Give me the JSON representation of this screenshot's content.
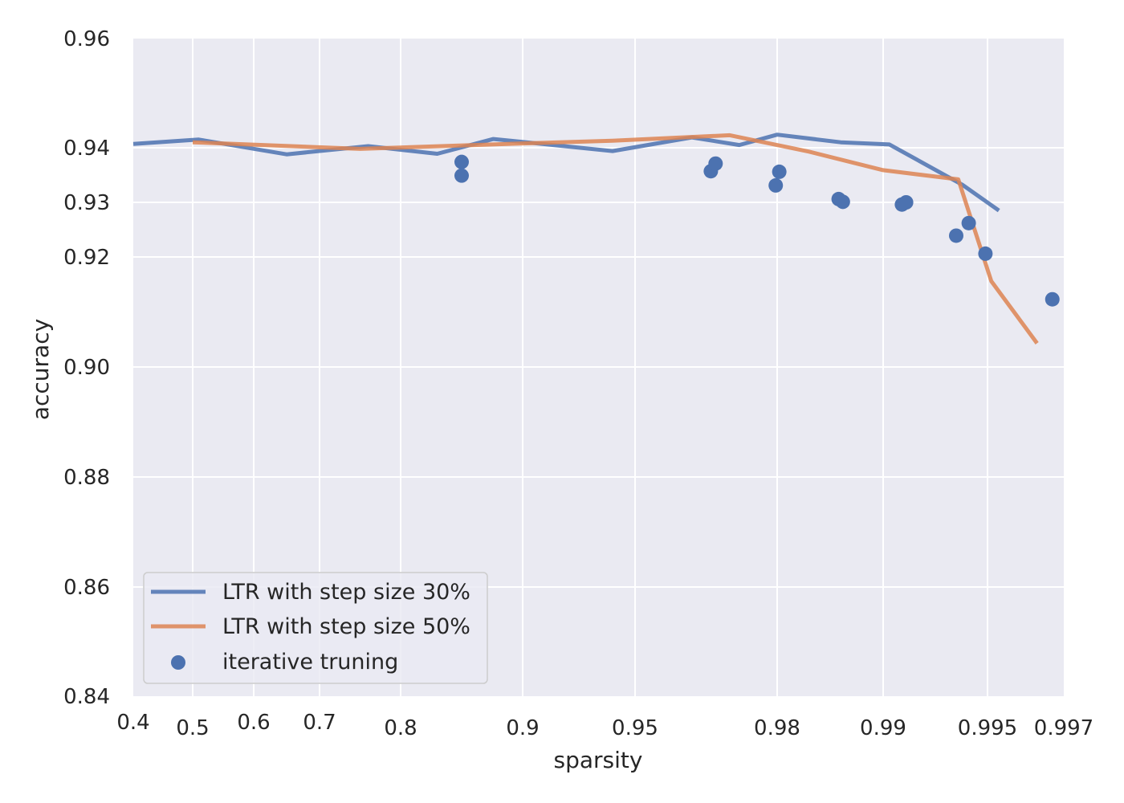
{
  "chart_data": {
    "type": "line",
    "xlabel": "sparsity",
    "ylabel": "accuracy",
    "x_ticks": [
      0.4,
      0.5,
      0.6,
      0.7,
      0.8,
      0.9,
      0.95,
      0.98,
      0.99,
      0.995,
      0.997
    ],
    "x_tick_labels": [
      "0.4",
      "0.5",
      "0.6",
      "0.7",
      "0.8",
      "0.9",
      "0.95",
      "0.98",
      "0.99",
      "0.995",
      "0.997"
    ],
    "y_ticks": [
      0.84,
      0.86,
      0.88,
      0.9,
      0.92,
      0.93,
      0.94,
      0.96
    ],
    "y_tick_labels": [
      "0.84",
      "0.86",
      "0.88",
      "0.90",
      "0.92",
      "0.93",
      "0.94",
      "0.96"
    ],
    "xlim": [
      0.4,
      0.997
    ],
    "ylim": [
      0.84,
      0.96
    ],
    "x_scale": "nonuniform (positions set by tick values)",
    "grid": true,
    "legend_position": "lower left",
    "series": [
      {
        "name": "LTR with step size 30%",
        "kind": "line",
        "color": "#4c72b0",
        "points": [
          [
            0.4,
            0.9407
          ],
          [
            0.51,
            0.9415
          ],
          [
            0.65,
            0.9388
          ],
          [
            0.76,
            0.9403
          ],
          [
            0.83,
            0.9389
          ],
          [
            0.876,
            0.9416
          ],
          [
            0.94,
            0.9394
          ],
          [
            0.962,
            0.9419
          ],
          [
            0.972,
            0.9405
          ],
          [
            0.98,
            0.9424
          ],
          [
            0.986,
            0.941
          ],
          [
            0.9903,
            0.9406
          ],
          [
            0.9938,
            0.9332
          ],
          [
            0.9953,
            0.9285
          ]
        ]
      },
      {
        "name": "LTR with step size 50%",
        "kind": "line",
        "color": "#dd8452",
        "points": [
          [
            0.5,
            0.941
          ],
          [
            0.75,
            0.9398
          ],
          [
            0.9,
            0.9408
          ],
          [
            0.94,
            0.9413
          ],
          [
            0.97,
            0.9423
          ],
          [
            0.983,
            0.9393
          ],
          [
            0.99,
            0.9359
          ],
          [
            0.9936,
            0.9342
          ],
          [
            0.9951,
            0.9156
          ],
          [
            0.9963,
            0.9043
          ]
        ]
      },
      {
        "name": "iterative truning",
        "kind": "scatter",
        "color": "#4c72b0",
        "points": [
          [
            0.85,
            0.9374
          ],
          [
            0.85,
            0.9349
          ],
          [
            0.966,
            0.9357
          ],
          [
            0.967,
            0.9371
          ],
          [
            0.9797,
            0.9331
          ],
          [
            0.9802,
            0.9356
          ],
          [
            0.9858,
            0.9306
          ],
          [
            0.9862,
            0.9301
          ],
          [
            0.9909,
            0.9296
          ],
          [
            0.9911,
            0.93
          ],
          [
            0.9935,
            0.9239
          ],
          [
            0.9941,
            0.9262
          ],
          [
            0.9949,
            0.9206
          ],
          [
            0.9967,
            0.9123
          ]
        ]
      }
    ]
  }
}
